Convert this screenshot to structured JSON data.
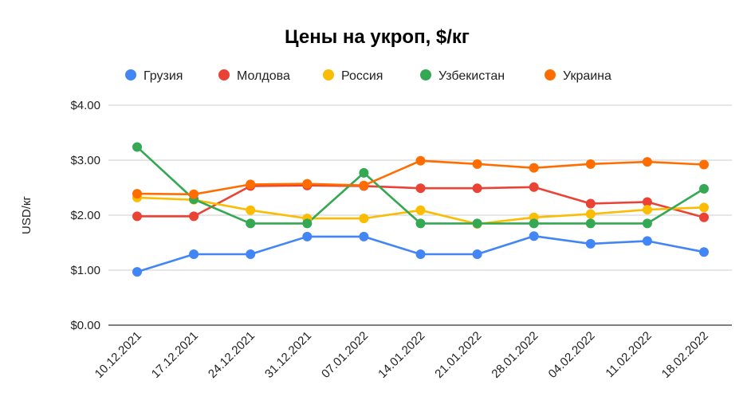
{
  "chart_data": {
    "type": "line",
    "title": "Цены на укроп, $/кг",
    "xlabel": "",
    "ylabel": "USD/кг",
    "ylim": [
      0,
      4
    ],
    "yticks": [
      "$0.00",
      "$1.00",
      "$2.00",
      "$3.00",
      "$4.00"
    ],
    "ytick_values": [
      0,
      1,
      2,
      3,
      4
    ],
    "grid": true,
    "legend_position": "top",
    "categories": [
      "10.12.2021",
      "17.12.2021",
      "24.12.2021",
      "31.12.2021",
      "07.01.2022",
      "14.01.2022",
      "21.01.2022",
      "28.01.2022",
      "04.02.2022",
      "11.02.2022",
      "18.02.2022"
    ],
    "series": [
      {
        "name": "Грузия",
        "color": "#4285F4",
        "values": [
          0.97,
          1.29,
          1.29,
          1.61,
          1.61,
          1.29,
          1.29,
          1.62,
          1.48,
          1.53,
          1.33
        ]
      },
      {
        "name": "Молдова",
        "color": "#EA4335",
        "values": [
          1.98,
          1.98,
          2.53,
          2.54,
          2.53,
          2.49,
          2.49,
          2.51,
          2.21,
          2.24,
          1.96
        ]
      },
      {
        "name": "Россия",
        "color": "#FBBC04",
        "values": [
          2.32,
          2.28,
          2.09,
          1.94,
          1.94,
          2.09,
          1.84,
          1.96,
          2.02,
          2.1,
          2.14
        ]
      },
      {
        "name": "Узбекистан",
        "color": "#34A853",
        "values": [
          3.24,
          2.29,
          1.85,
          1.85,
          2.77,
          1.85,
          1.85,
          1.85,
          1.85,
          1.85,
          2.48
        ]
      },
      {
        "name": "Украина",
        "color": "#FF6D01",
        "values": [
          2.39,
          2.38,
          2.56,
          2.57,
          2.54,
          2.99,
          2.93,
          2.86,
          2.93,
          2.97,
          2.92
        ]
      }
    ]
  }
}
